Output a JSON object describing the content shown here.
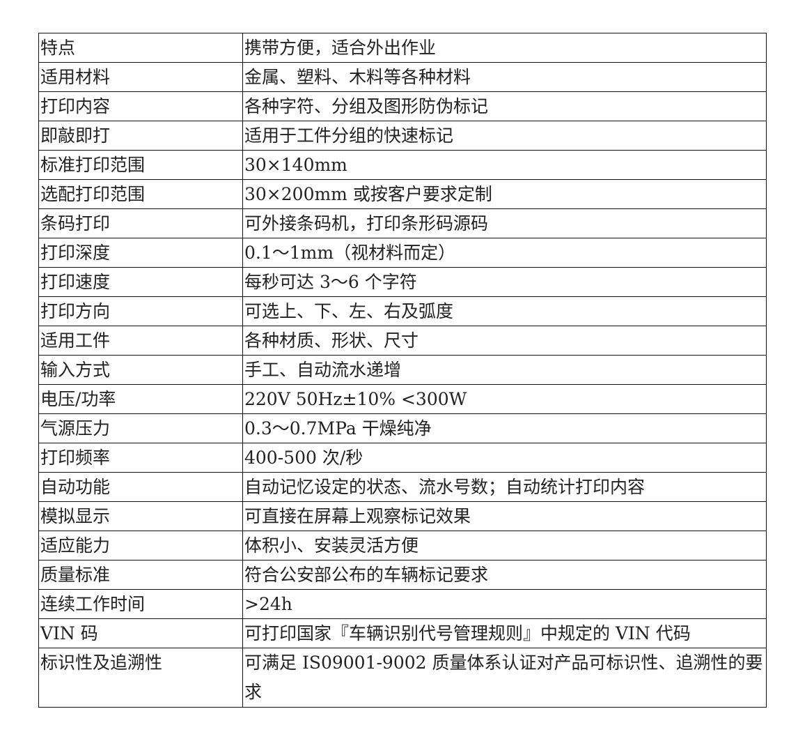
{
  "rows": [
    {
      "label": "特点",
      "value": "携带方便，适合外出作业"
    },
    {
      "label": "适用材料",
      "value": "金属、塑料、木料等各种材料"
    },
    {
      "label": "打印内容",
      "value": "各种字符、分组及图形防伪标记"
    },
    {
      "label": "即敲即打",
      "value": "适用于工件分组的快速标记"
    },
    {
      "label": "标准打印范围",
      "value": "30×140mm"
    },
    {
      "label": "选配打印范围",
      "value": "30×200mm 或按客户要求定制"
    },
    {
      "label": "条码打印",
      "value": "可外接条码机，打印条形码源码"
    },
    {
      "label": "打印深度",
      "value": "0.1～1mm（视材料而定）"
    },
    {
      "label": "打印速度",
      "value": "每秒可达 3～6 个字符"
    },
    {
      "label": "打印方向",
      "value": "可选上、下、左、右及弧度"
    },
    {
      "label": "适用工件",
      "value": "各种材质、形状、尺寸"
    },
    {
      "label": "输入方式",
      "value": "手工、自动流水递增"
    },
    {
      "label": "电压/功率",
      "value": "220V 50Hz±10% <300W"
    },
    {
      "label": "气源压力",
      "value": "0.3～0.7MPa 干燥纯净"
    },
    {
      "label": "打印频率",
      "value": "400-500 次/秒"
    },
    {
      "label": "自动功能",
      "value": "自动记忆设定的状态、流水号数；自动统计打印内容"
    },
    {
      "label": "模拟显示",
      "value": "可直接在屏幕上观察标记效果"
    },
    {
      "label": "适应能力",
      "value": "体积小、安装灵活方便"
    },
    {
      "label": "质量标准",
      "value": "符合公安部公布的车辆标记要求"
    },
    {
      "label": "连续工作时间",
      "value": ">24h"
    },
    {
      "label": "VIN 码",
      "value": "可打印国家『车辆识别代号管理规则』中规定的 VIN 代码"
    },
    {
      "label": "标识性及追溯性",
      "value": "可满足 IS09001-9002 质量体系认证对产品可标识性、追溯性的要求"
    }
  ]
}
